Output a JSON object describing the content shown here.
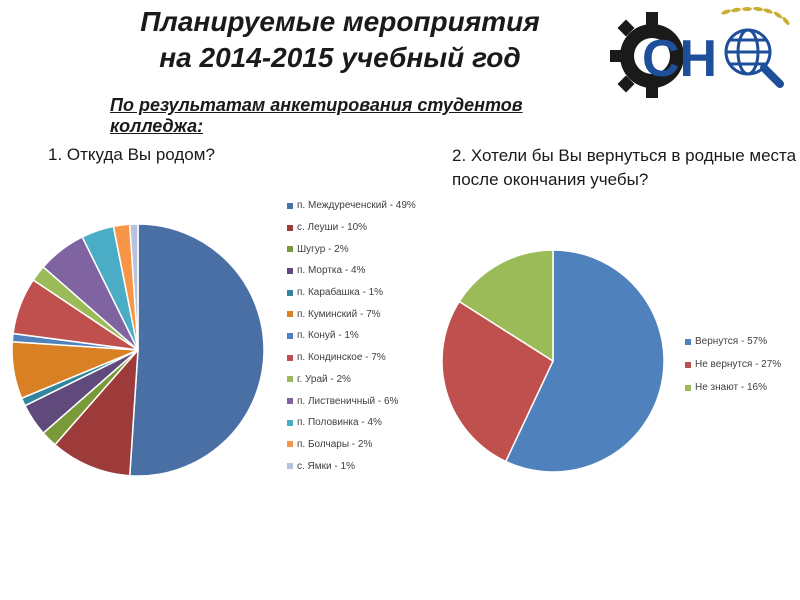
{
  "title": {
    "line1": "Планируемые мероприятия",
    "line2": "на 2014-2015 учебный год"
  },
  "subtitle": "По результатам анкетирования студентов колледжа:",
  "logo": {
    "text": "СН",
    "icons": [
      "gear-icon",
      "globe-icon",
      "magnifier-icon",
      "laurel-icon"
    ]
  },
  "colors": {
    "title": "#1a1a1a",
    "logo_blue": "#1e4f9a",
    "logo_black": "#1a1a1a"
  },
  "chart_data": [
    {
      "type": "pie",
      "title": "1. Откуда Вы родом?",
      "legend_position": "right",
      "start_angle_deg": 0,
      "direction": "clockwise",
      "slices": [
        {
          "label": "п. Междуреченский - 49%",
          "value": 49,
          "color": "#4a6fa5"
        },
        {
          "label": "с. Леуши - 10%",
          "value": 10,
          "color": "#9c3b39"
        },
        {
          "label": "Шугур - 2%",
          "value": 2,
          "color": "#7a9a3a"
        },
        {
          "label": "п. Мортка - 4%",
          "value": 4,
          "color": "#604a7b"
        },
        {
          "label": "п. Карабашка - 1%",
          "value": 1,
          "color": "#31859c"
        },
        {
          "label": "п. Куминский - 7%",
          "value": 7,
          "color": "#d98024"
        },
        {
          "label": "п. Конуй - 1%",
          "value": 1,
          "color": "#4f81bd"
        },
        {
          "label": "п. Кондинское - 7%",
          "value": 7,
          "color": "#c0504d"
        },
        {
          "label": "г. Урай - 2%",
          "value": 2,
          "color": "#9bbb59"
        },
        {
          "label": "п. Лиственичный - 6%",
          "value": 6,
          "color": "#8064a2"
        },
        {
          "label": "п. Половинка - 4%",
          "value": 4,
          "color": "#4bacc6"
        },
        {
          "label": "п. Болчары - 2%",
          "value": 2,
          "color": "#f79646"
        },
        {
          "label": "с. Ямки - 1%",
          "value": 1,
          "color": "#b7c3dd"
        }
      ]
    },
    {
      "type": "pie",
      "title": "2. Хотели бы Вы вернуться в родные места после окончания учебы?",
      "legend_position": "right",
      "start_angle_deg": 0,
      "direction": "clockwise",
      "slices": [
        {
          "label": "Вернутся - 57%",
          "value": 57,
          "color": "#4f81bd"
        },
        {
          "label": "Не вернутся - 27%",
          "value": 27,
          "color": "#c0504d"
        },
        {
          "label": "Не знают - 16%",
          "value": 16,
          "color": "#9bbb59"
        }
      ]
    }
  ]
}
